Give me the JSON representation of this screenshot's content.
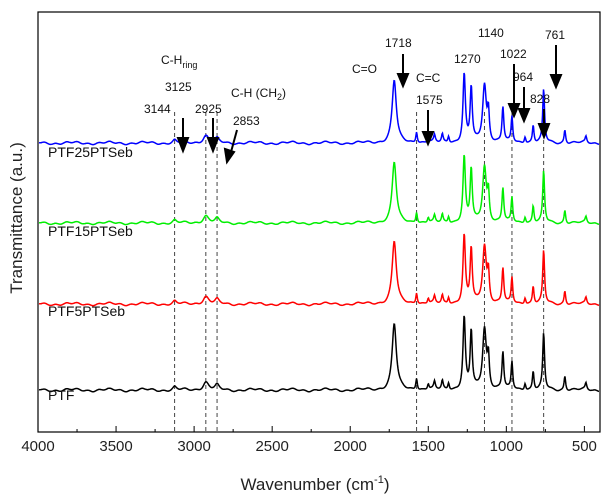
{
  "chart_data": {
    "type": "line",
    "xlabel": "Wavenumber (cm",
    "xlabel_sup": "-1",
    "xlabel_tail": ")",
    "ylabel": "Transmittance  (a.u.)",
    "xlim": [
      4000,
      400
    ],
    "xticks": [
      {
        "value": 4000,
        "label": "4000"
      },
      {
        "value": 3500,
        "label": "3500"
      },
      {
        "value": 3000,
        "label": "3000"
      },
      {
        "value": 2500,
        "label": "2500"
      },
      {
        "value": 2000,
        "label": "2000"
      },
      {
        "value": 1500,
        "label": "1500"
      },
      {
        "value": 1000,
        "label": "1000"
      },
      {
        "value": 500,
        "label": "500"
      }
    ],
    "series": [
      {
        "name": "PTF25PTSeb",
        "color": "#0000ff",
        "offset": 3.0
      },
      {
        "name": "PTF15PTSeb",
        "color": "#00ee00",
        "offset": 2.0
      },
      {
        "name": "PTF5PTSeb",
        "color": "#ff0000",
        "offset": 1.0
      },
      {
        "name": "PTF",
        "color": "#000000",
        "offset": 0.0
      }
    ],
    "peaks": [
      {
        "x": 3125,
        "w": 12,
        "h": 0.04
      },
      {
        "x": 2925,
        "w": 22,
        "h": 0.11
      },
      {
        "x": 2853,
        "w": 14,
        "h": 0.06
      },
      {
        "x": 1718,
        "w": 16,
        "h": 0.92
      },
      {
        "x": 1575,
        "w": 6,
        "h": 0.17
      },
      {
        "x": 1500,
        "w": 6,
        "h": 0.08
      },
      {
        "x": 1460,
        "w": 6,
        "h": 0.1
      },
      {
        "x": 1410,
        "w": 6,
        "h": 0.12
      },
      {
        "x": 1370,
        "w": 6,
        "h": 0.1
      },
      {
        "x": 1270,
        "w": 9,
        "h": 1.0
      },
      {
        "x": 1225,
        "w": 8,
        "h": 0.8
      },
      {
        "x": 1140,
        "w": 14,
        "h": 0.85
      },
      {
        "x": 1115,
        "w": 7,
        "h": 0.4
      },
      {
        "x": 1022,
        "w": 7,
        "h": 0.52
      },
      {
        "x": 964,
        "w": 6,
        "h": 0.38
      },
      {
        "x": 880,
        "w": 6,
        "h": 0.1
      },
      {
        "x": 828,
        "w": 6,
        "h": 0.26
      },
      {
        "x": 761,
        "w": 7,
        "h": 0.78
      },
      {
        "x": 625,
        "w": 6,
        "h": 0.2
      },
      {
        "x": 490,
        "w": 6,
        "h": 0.09
      }
    ],
    "dashed_lines": [
      3125,
      2925,
      2853,
      1575,
      1140,
      964,
      761
    ],
    "annotations": [
      {
        "lines": [
          "C-H",
          "3125",
          "3144"
        ],
        "sub": "ring"
      },
      {
        "text": "2925"
      },
      {
        "text": "C-H (CH",
        "sub": "2",
        "tail": ")"
      },
      {
        "text": "2853"
      },
      {
        "text": "C=O"
      },
      {
        "text": "1718"
      },
      {
        "text": "C=C"
      },
      {
        "text": "1575"
      },
      {
        "text": "1270"
      },
      {
        "text": "1140"
      },
      {
        "text": "1022"
      },
      {
        "text": "964"
      },
      {
        "text": "828"
      },
      {
        "text": "761"
      }
    ]
  }
}
